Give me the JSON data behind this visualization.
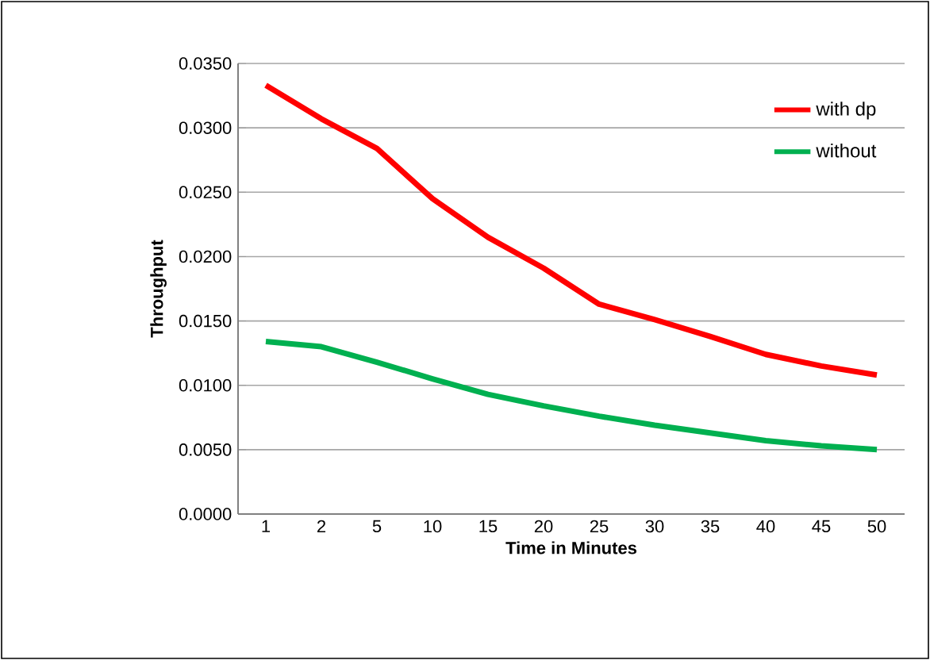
{
  "chart_data": {
    "type": "line",
    "xlabel": "Time in Minutes",
    "ylabel": "Throughput",
    "categories": [
      "1",
      "2",
      "5",
      "10",
      "15",
      "20",
      "25",
      "30",
      "35",
      "40",
      "45",
      "50"
    ],
    "series": [
      {
        "name": "with dp",
        "color": "#ff0000",
        "values": [
          0.0333,
          0.0307,
          0.0284,
          0.0245,
          0.0215,
          0.0191,
          0.0163,
          0.0151,
          0.0138,
          0.0124,
          0.0115,
          0.0108
        ]
      },
      {
        "name": "without",
        "color": "#00b050",
        "values": [
          0.0134,
          0.013,
          0.0118,
          0.0105,
          0.0093,
          0.0084,
          0.0076,
          0.0069,
          0.0063,
          0.0057,
          0.0053,
          0.005
        ]
      }
    ],
    "ylim": [
      0,
      0.035
    ],
    "yticks": [
      {
        "value": 0,
        "label": "0.0000"
      },
      {
        "value": 0.005,
        "label": "0.0050"
      },
      {
        "value": 0.01,
        "label": "0.0100"
      },
      {
        "value": 0.015,
        "label": "0.0150"
      },
      {
        "value": 0.02,
        "label": "0.0200"
      },
      {
        "value": 0.025,
        "label": "0.0250"
      },
      {
        "value": 0.03,
        "label": "0.0300"
      },
      {
        "value": 0.035,
        "label": "0.0350"
      }
    ],
    "grid": "y",
    "legend": "top right",
    "marker": "none",
    "line_style": "solid"
  }
}
